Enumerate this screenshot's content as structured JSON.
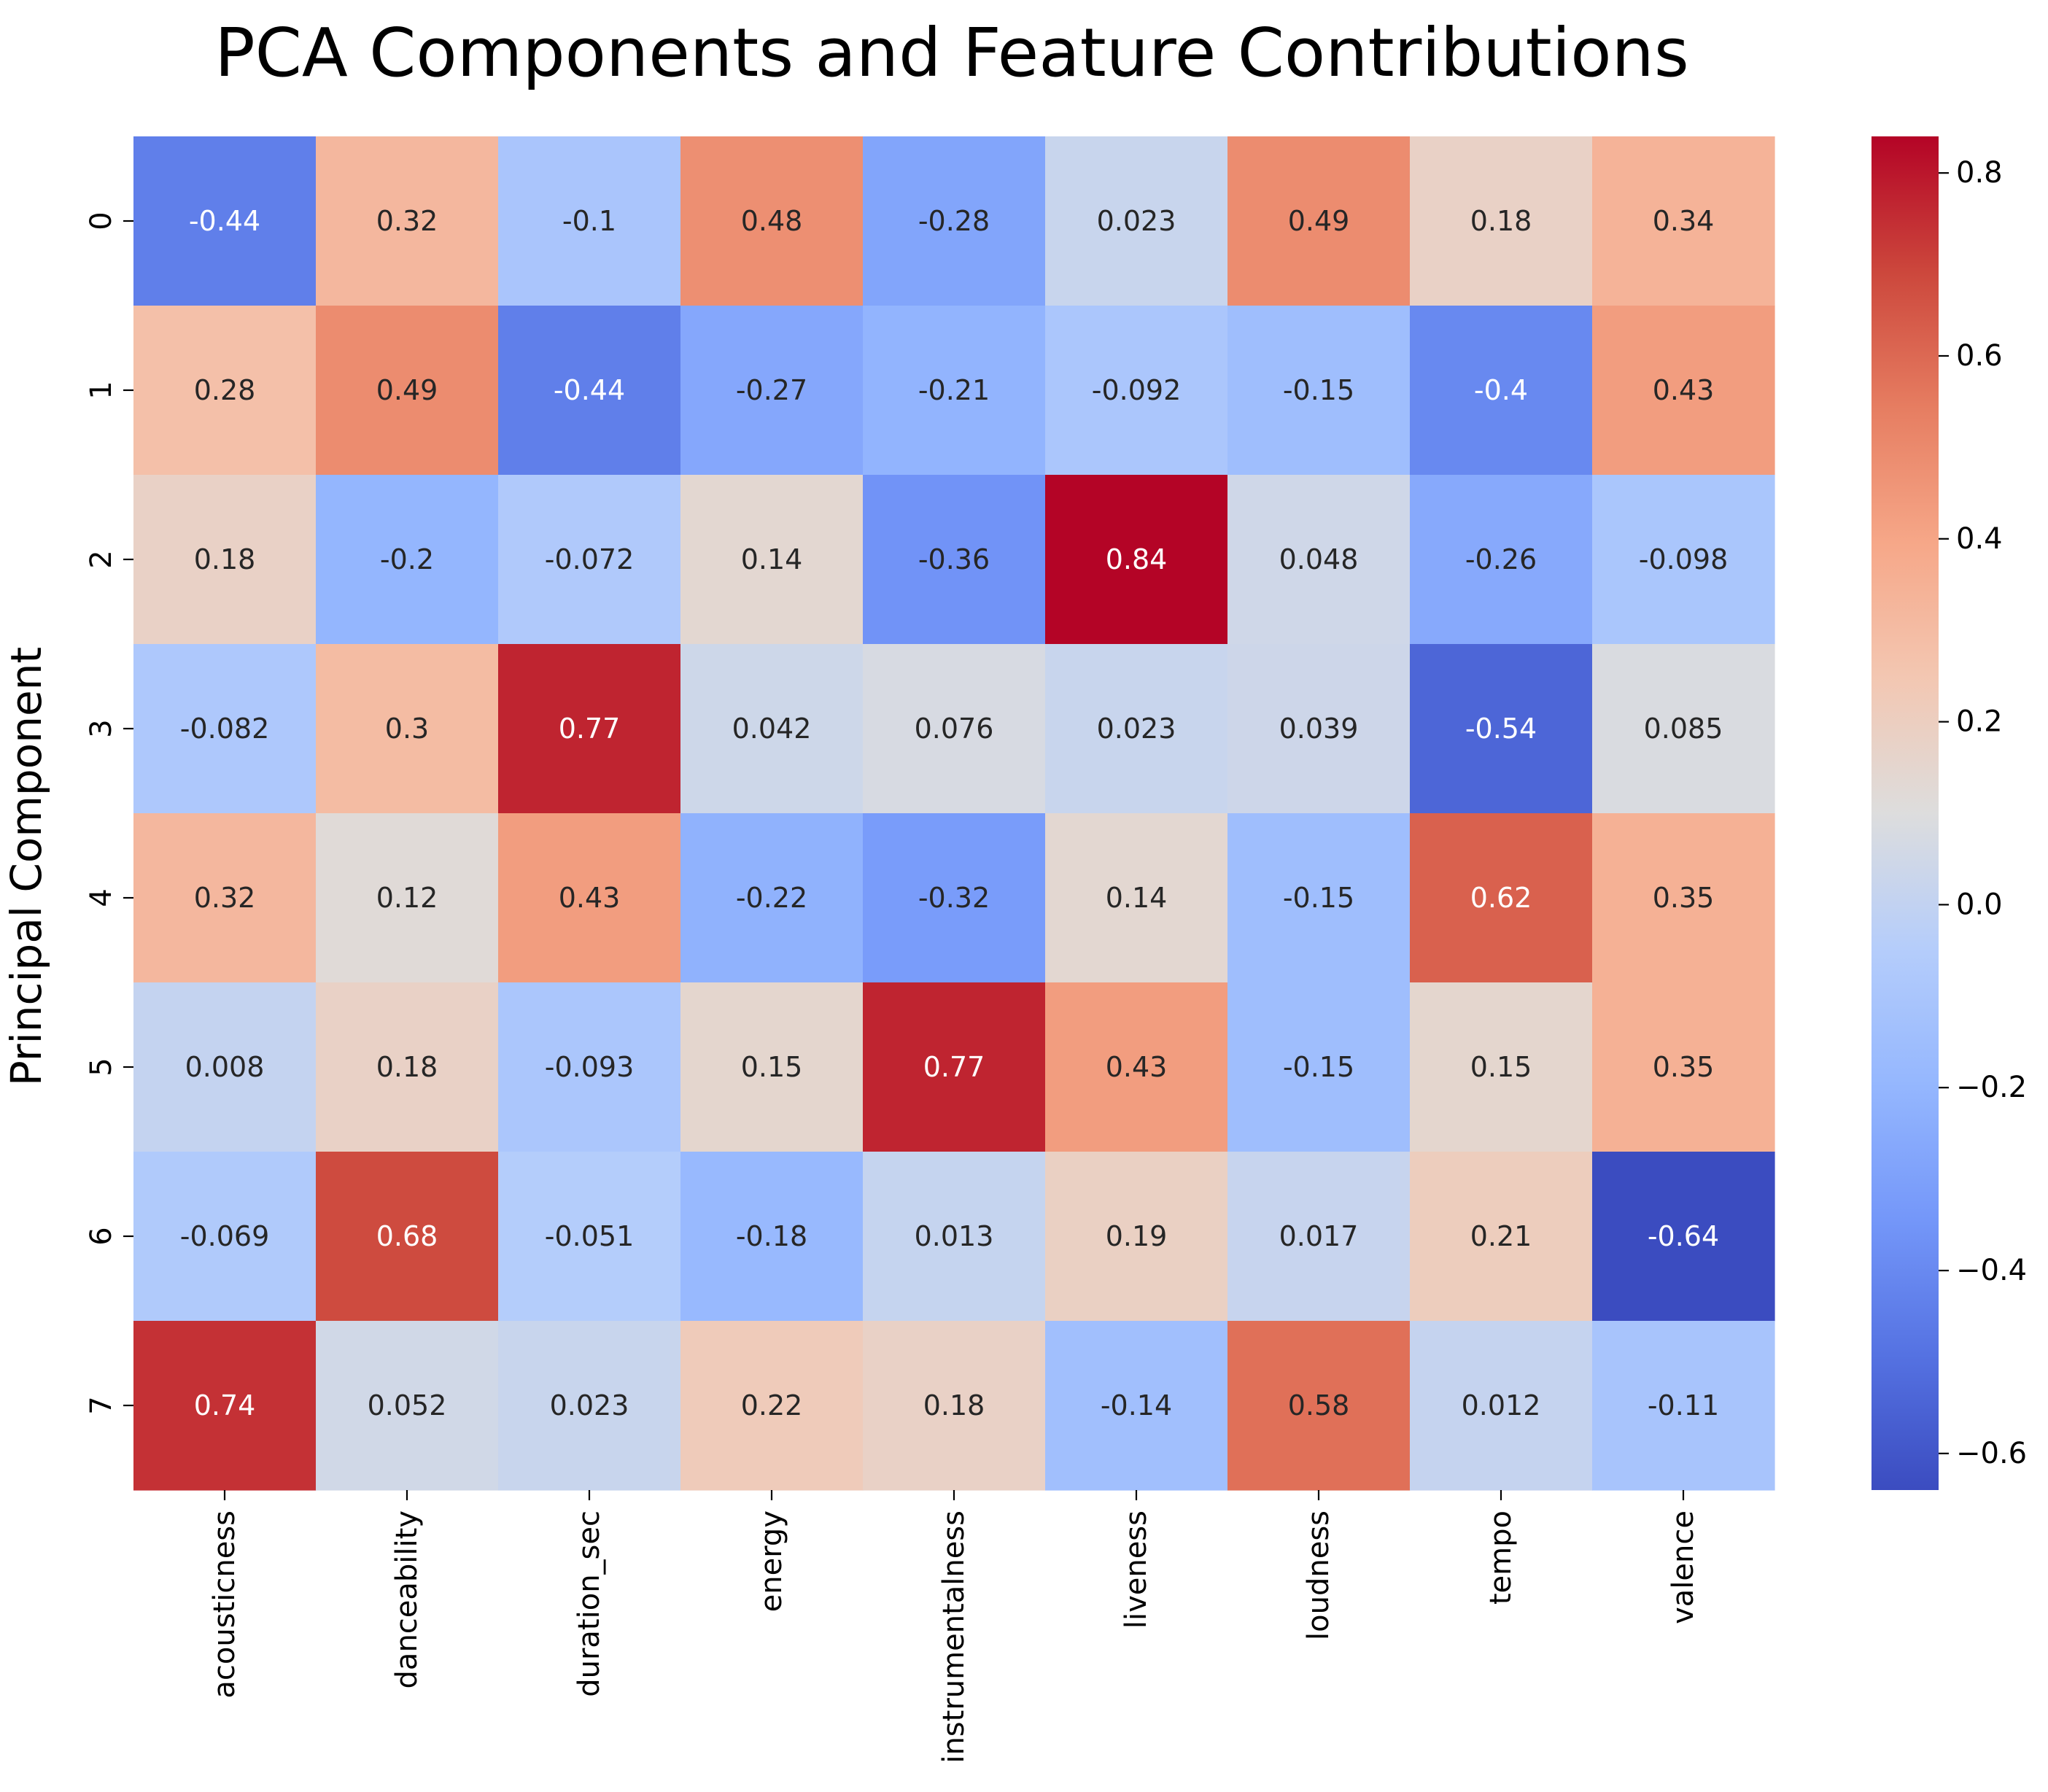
{
  "chart_data": {
    "type": "heatmap",
    "title": "PCA Components and Feature Contributions",
    "xlabel": "",
    "ylabel": "Principal Component",
    "x_categories": [
      "acousticness",
      "danceability",
      "duration_sec",
      "energy",
      "instrumentalness",
      "liveness",
      "loudness",
      "tempo",
      "valence"
    ],
    "y_categories": [
      "0",
      "1",
      "2",
      "3",
      "4",
      "5",
      "6",
      "7"
    ],
    "values": [
      [
        -0.44,
        0.32,
        -0.1,
        0.48,
        -0.28,
        0.023,
        0.49,
        0.18,
        0.34
      ],
      [
        0.28,
        0.49,
        -0.44,
        -0.27,
        -0.21,
        -0.092,
        -0.15,
        -0.4,
        0.43
      ],
      [
        0.18,
        -0.2,
        -0.072,
        0.14,
        -0.36,
        0.84,
        0.048,
        -0.26,
        -0.098
      ],
      [
        -0.082,
        0.3,
        0.77,
        0.042,
        0.076,
        0.023,
        0.039,
        -0.54,
        0.085
      ],
      [
        0.32,
        0.12,
        0.43,
        -0.22,
        -0.32,
        0.14,
        -0.15,
        0.62,
        0.35
      ],
      [
        0.008,
        0.18,
        -0.093,
        0.15,
        0.77,
        0.43,
        -0.15,
        0.15,
        0.35
      ],
      [
        -0.069,
        0.68,
        -0.051,
        -0.18,
        0.013,
        0.19,
        0.017,
        0.21,
        -0.64
      ],
      [
        0.74,
        0.052,
        0.023,
        0.22,
        0.18,
        -0.14,
        0.58,
        0.012,
        -0.11
      ]
    ],
    "value_range": [
      -0.64,
      0.84
    ],
    "colormap": "coolwarm",
    "colorbar_ticks": [
      "−0.6",
      "−0.4",
      "−0.2",
      "0.0",
      "0.2",
      "0.4",
      "0.6",
      "0.8"
    ],
    "colorbar_tick_values": [
      -0.6,
      -0.4,
      -0.2,
      0.0,
      0.2,
      0.4,
      0.6,
      0.8
    ],
    "grid": false,
    "legend": "colorbar-right"
  }
}
